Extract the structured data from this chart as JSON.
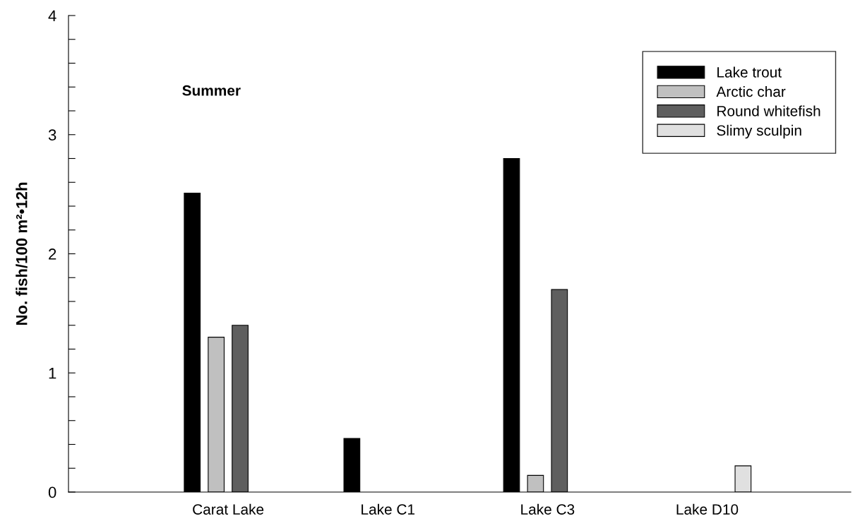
{
  "chart_data": {
    "type": "bar",
    "ylabel": "No. fish/100 m²•12h",
    "annotations": [
      "Summer"
    ],
    "categories": [
      "Carat Lake",
      "Lake C1",
      "Lake C3",
      "Lake D10"
    ],
    "series": [
      {
        "name": "Lake trout",
        "color": "#000000",
        "values": [
          2.51,
          0.45,
          2.8,
          null
        ]
      },
      {
        "name": "Arctic char",
        "color": "#c0c0c0",
        "values": [
          1.3,
          null,
          0.14,
          null
        ]
      },
      {
        "name": "Round whitefish",
        "color": "#5f5f5f",
        "values": [
          1.4,
          null,
          1.7,
          null
        ]
      },
      {
        "name": "Slimy sculpin",
        "color": "#e0e0e0",
        "values": [
          null,
          null,
          null,
          0.22
        ]
      }
    ],
    "ylim": [
      0,
      4
    ],
    "yticks": [
      0,
      {
        "value": 0.2,
        "label": null
      },
      {
        "value": 0.4,
        "label": null
      },
      {
        "value": 0.6,
        "label": null
      },
      {
        "value": 0.8,
        "label": null
      },
      1,
      {
        "value": 1.2,
        "label": null
      },
      {
        "value": 1.4,
        "label": null
      },
      {
        "value": 1.6,
        "label": null
      },
      {
        "value": 1.8,
        "label": null
      },
      2,
      {
        "value": 2.2,
        "label": null
      },
      {
        "value": 2.4,
        "label": null
      },
      {
        "value": 2.6,
        "label": null
      },
      {
        "value": 2.8,
        "label": null
      },
      3,
      {
        "value": 3.2,
        "label": null
      },
      {
        "value": 3.4,
        "label": null
      },
      {
        "value": 3.6,
        "label": null
      },
      {
        "value": 3.8,
        "label": null
      },
      4
    ],
    "grid": false,
    "legend": "top right"
  }
}
